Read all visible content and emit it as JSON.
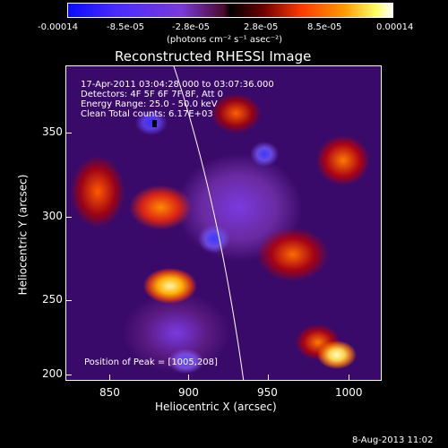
{
  "colorbar": {
    "ticks": [
      "-0.00014",
      "-8.5e-05",
      "-2.8e-05",
      "2.8e-05",
      "8.5e-05",
      "0.00014"
    ],
    "units": "(photons cm⁻² s⁻¹ asec⁻²)"
  },
  "plot": {
    "title": "Reconstructed RHESSI Image",
    "info_lines": [
      "17-Apr-2011 03:04:28.000 to 03:07:36.000",
      "Detectors: 4F 5F 6F 7F 8F, Att 0",
      "Energy Range: 25.0 - 50.0 keV",
      "Clean     Total counts: 6.17E+03"
    ],
    "peak_text": "Position of Peak = [1005,208]",
    "xlabel": "Heliocentric X (arcsec)",
    "ylabel": "Heliocentric Y (arcsec)",
    "xticks": [
      "850",
      "900",
      "950",
      "1000"
    ],
    "yticks": [
      "350",
      "300",
      "250",
      "200"
    ]
  },
  "footer": {
    "date": "8-Aug-2013 11:02"
  },
  "chart_data": {
    "type": "heatmap",
    "title": "Reconstructed RHESSI Image",
    "xlabel": "Heliocentric X (arcsec)",
    "ylabel": "Heliocentric Y (arcsec)",
    "xlim": [
      826,
      1023
    ],
    "ylim": [
      197,
      393
    ],
    "colorbar_range": [
      -0.00014,
      0.00014
    ],
    "colormap": "blue-purple-black-red-yellow-white",
    "peak_position": [
      1005,
      208
    ]
  }
}
